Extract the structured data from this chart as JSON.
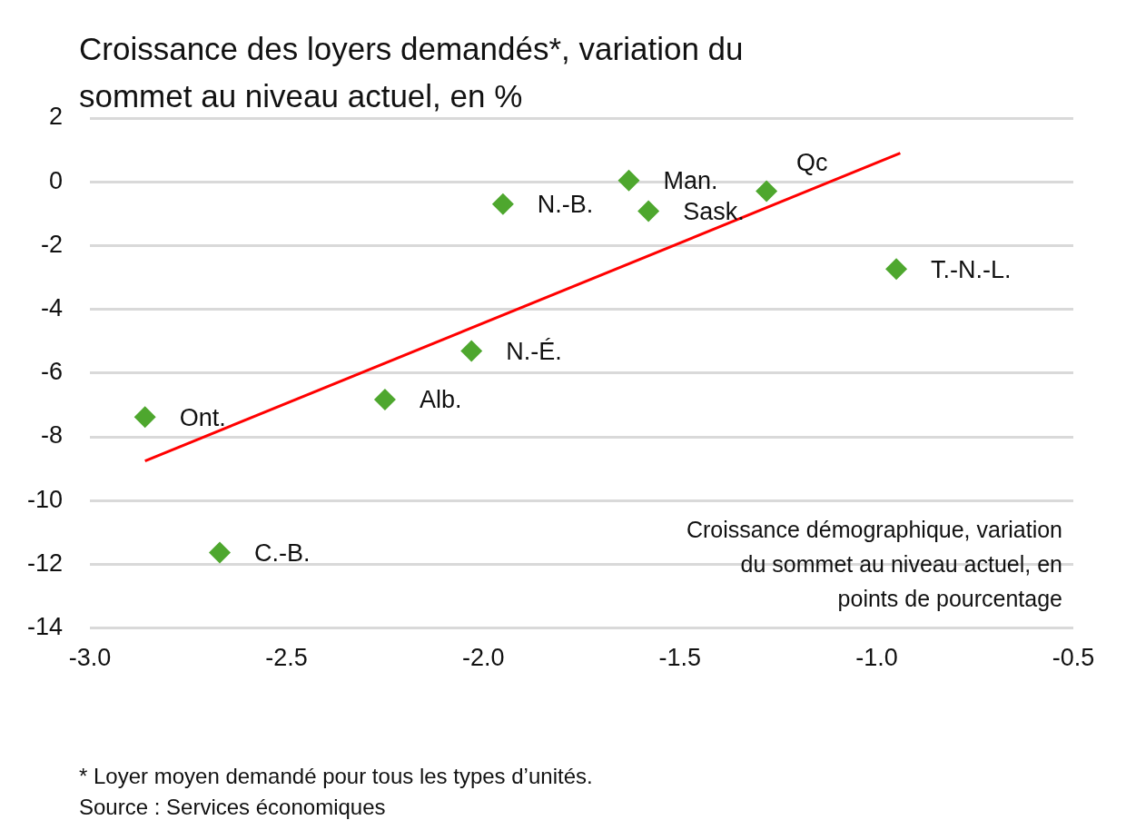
{
  "chart_data": {
    "type": "scatter",
    "title": "Croissance des loyers demandés*, variation du sommet au niveau actuel, en %",
    "xlabel": "Croissance démographique, variation du sommet au niveau actuel, en points de pourcentage",
    "series": [
      {
        "type": "scatter",
        "color": "#4ea72e",
        "marker": "diamond",
        "x": [
          -2.86,
          -2.67,
          -2.25,
          -2.03,
          -1.95,
          -1.63,
          -1.58,
          -1.28,
          -0.95
        ],
        "values": [
          -7.38,
          -11.63,
          -6.83,
          -5.31,
          -0.7,
          0.04,
          -0.92,
          -0.29,
          -2.74
        ]
      },
      {
        "type": "line",
        "color": "#ff0000",
        "marker": "none",
        "x": [
          -2.86,
          -0.94
        ],
        "values": [
          -8.76,
          0.9
        ]
      }
    ],
    "annotations": [
      {
        "text": "Ont.",
        "x": -2.86,
        "y": -7.38
      },
      {
        "text": "C.-B.",
        "x": -2.67,
        "y": -11.63
      },
      {
        "text": "Alb.",
        "x": -2.25,
        "y": -6.83
      },
      {
        "text": "N.-É.",
        "x": -2.03,
        "y": -5.31
      },
      {
        "text": "N.-B.",
        "x": -1.95,
        "y": -0.7
      },
      {
        "text": "Man.",
        "x": -1.63,
        "y": 0.04
      },
      {
        "text": "Sask.",
        "x": -1.58,
        "y": -0.92
      },
      {
        "text": "Qc",
        "x": -1.28,
        "y": -0.29
      },
      {
        "text": "T.-N.-L.",
        "x": -0.95,
        "y": -2.74
      },
      "* Loyer moyen demandé pour tous les types d’unités.",
      "Source : Services économiques"
    ],
    "xlim": [
      -3,
      -0.5
    ],
    "xticks": [
      {
        "value": -3,
        "label": "-3.0"
      },
      {
        "value": -2.5,
        "label": "-2.5"
      },
      {
        "value": -2,
        "label": "-2.0"
      },
      {
        "value": -1.5,
        "label": "-1.5"
      },
      {
        "value": -1,
        "label": "-1.0"
      },
      {
        "value": -0.5,
        "label": "-0.5"
      }
    ],
    "ylim": [
      -14,
      2
    ],
    "yticks": [
      -14,
      -12,
      -10,
      -8,
      -6,
      -4,
      -2,
      0,
      2
    ],
    "grid": "y",
    "legend": false
  }
}
